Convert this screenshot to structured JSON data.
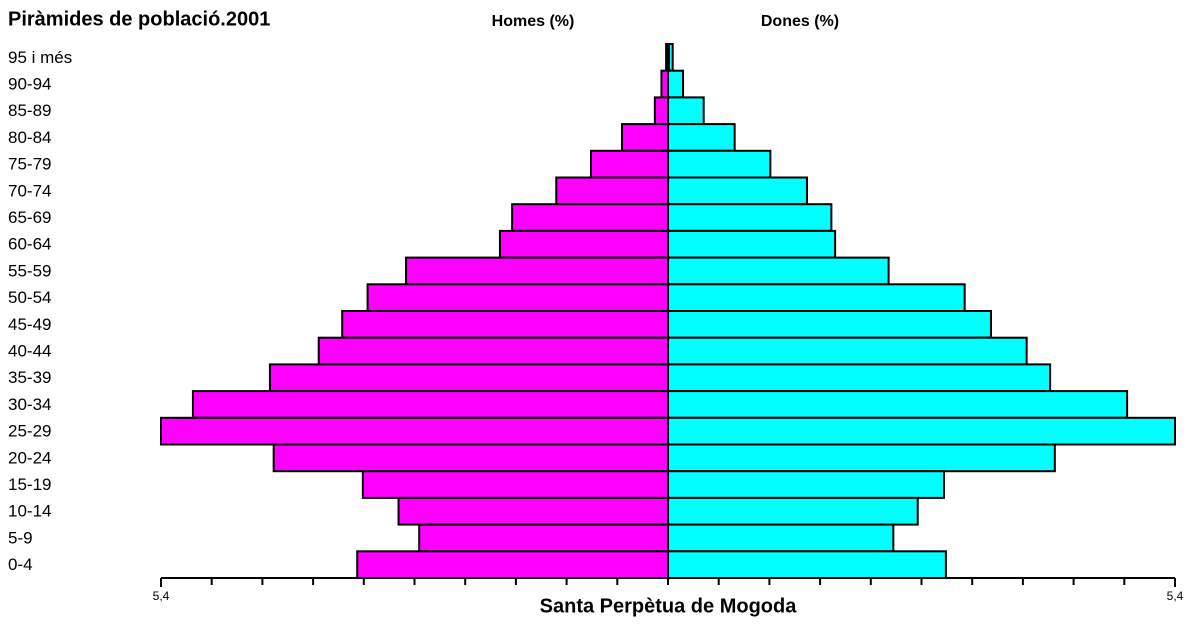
{
  "chart_data": {
    "type": "pyramid",
    "title": "Piràmides de població.2001",
    "xlabel": "Santa Perpètua de Mogoda",
    "categories": [
      "95 i més",
      "90-94",
      "85-89",
      "80-84",
      "75-79",
      "70-74",
      "65-69",
      "60-64",
      "55-59",
      "50-54",
      "45-49",
      "40-44",
      "35-39",
      "30-34",
      "25-29",
      "20-24",
      "15-19",
      "10-14",
      "5-9",
      "0-4"
    ],
    "series": [
      {
        "name": "Homes (%)",
        "color": "#ff00ff",
        "values": [
          0.02,
          0.07,
          0.14,
          0.49,
          0.82,
          1.19,
          1.66,
          1.79,
          2.79,
          3.2,
          3.47,
          3.72,
          4.24,
          5.06,
          5.4,
          4.2,
          3.25,
          2.87,
          2.65,
          3.31
        ]
      },
      {
        "name": "Dones (%)",
        "color": "#00ffff",
        "values": [
          0.05,
          0.16,
          0.38,
          0.71,
          1.09,
          1.48,
          1.74,
          1.78,
          2.35,
          3.16,
          3.44,
          3.82,
          4.07,
          4.89,
          5.4,
          4.12,
          2.94,
          2.66,
          2.4,
          2.96
        ]
      }
    ],
    "xlim": [
      0,
      5.4
    ],
    "xticks": [
      {
        "value": 5.4,
        "label": "5,4"
      }
    ]
  }
}
